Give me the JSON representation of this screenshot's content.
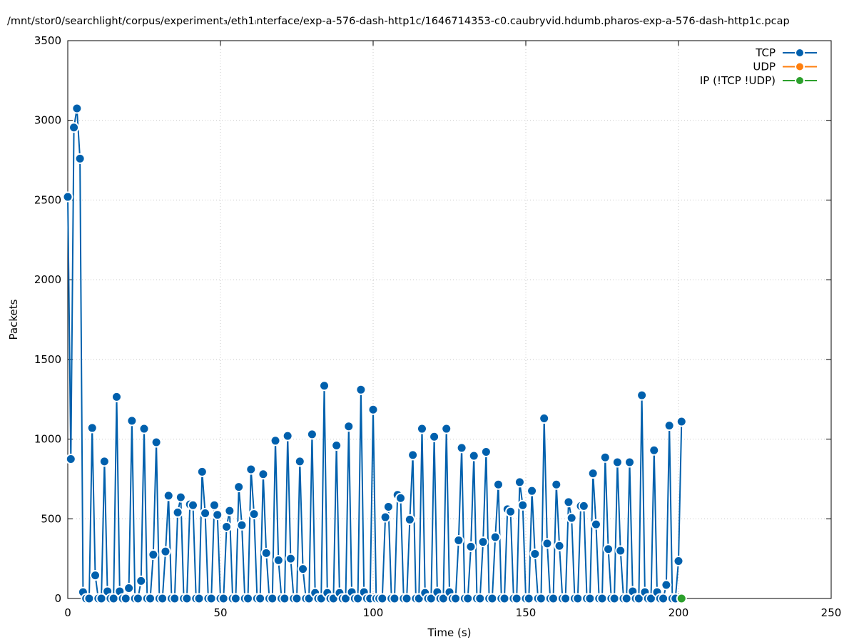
{
  "chart_data": {
    "type": "line",
    "title": "/mnt/stor0/searchlight/corpus/experiment₃/eth1ᵢnterface/exp-a-576-dash-http1c/1646714353-c0.caubryvid.hdumb.pharos-exp-a-576-dash-http1c.pcap",
    "xlabel": "Time (s)",
    "ylabel": "Packets",
    "xlim": [
      0,
      250
    ],
    "ylim": [
      0,
      3500
    ],
    "xticks": [
      0,
      50,
      100,
      150,
      200,
      250
    ],
    "yticks": [
      0,
      500,
      1000,
      1500,
      2000,
      2500,
      3000,
      3500
    ],
    "grid": true,
    "legend_position": "top-right",
    "series": [
      {
        "name": "TCP",
        "color": "#0060ad",
        "points": [
          [
            0,
            2520
          ],
          [
            1,
            875
          ],
          [
            2,
            2955
          ],
          [
            3,
            3075
          ],
          [
            4,
            2760
          ],
          [
            5,
            40
          ],
          [
            6,
            0
          ],
          [
            7,
            0
          ],
          [
            8,
            1070
          ],
          [
            9,
            145
          ],
          [
            10,
            0
          ],
          [
            11,
            0
          ],
          [
            12,
            860
          ],
          [
            13,
            45
          ],
          [
            14,
            0
          ],
          [
            15,
            0
          ],
          [
            16,
            1265
          ],
          [
            17,
            45
          ],
          [
            18,
            0
          ],
          [
            19,
            0
          ],
          [
            20,
            65
          ],
          [
            21,
            1115
          ],
          [
            22,
            0
          ],
          [
            23,
            0
          ],
          [
            24,
            110
          ],
          [
            25,
            1065
          ],
          [
            26,
            0
          ],
          [
            27,
            0
          ],
          [
            28,
            275
          ],
          [
            29,
            980
          ],
          [
            30,
            0
          ],
          [
            31,
            0
          ],
          [
            32,
            295
          ],
          [
            33,
            645
          ],
          [
            34,
            0
          ],
          [
            35,
            0
          ],
          [
            36,
            540
          ],
          [
            37,
            635
          ],
          [
            38,
            0
          ],
          [
            39,
            0
          ],
          [
            40,
            590
          ],
          [
            41,
            585
          ],
          [
            42,
            0
          ],
          [
            43,
            0
          ],
          [
            44,
            795
          ],
          [
            45,
            535
          ],
          [
            46,
            0
          ],
          [
            47,
            0
          ],
          [
            48,
            585
          ],
          [
            49,
            525
          ],
          [
            50,
            0
          ],
          [
            51,
            0
          ],
          [
            52,
            450
          ],
          [
            53,
            550
          ],
          [
            54,
            0
          ],
          [
            55,
            0
          ],
          [
            56,
            700
          ],
          [
            57,
            460
          ],
          [
            58,
            0
          ],
          [
            59,
            0
          ],
          [
            60,
            810
          ],
          [
            61,
            530
          ],
          [
            62,
            0
          ],
          [
            63,
            0
          ],
          [
            64,
            780
          ],
          [
            65,
            285
          ],
          [
            66,
            0
          ],
          [
            67,
            0
          ],
          [
            68,
            990
          ],
          [
            69,
            240
          ],
          [
            70,
            0
          ],
          [
            71,
            0
          ],
          [
            72,
            1020
          ],
          [
            73,
            250
          ],
          [
            74,
            0
          ],
          [
            75,
            0
          ],
          [
            76,
            860
          ],
          [
            77,
            185
          ],
          [
            78,
            0
          ],
          [
            79,
            0
          ],
          [
            80,
            1030
          ],
          [
            81,
            35
          ],
          [
            82,
            0
          ],
          [
            83,
            0
          ],
          [
            84,
            1335
          ],
          [
            85,
            35
          ],
          [
            86,
            0
          ],
          [
            87,
            0
          ],
          [
            88,
            960
          ],
          [
            89,
            35
          ],
          [
            90,
            0
          ],
          [
            91,
            0
          ],
          [
            92,
            1080
          ],
          [
            93,
            40
          ],
          [
            94,
            0
          ],
          [
            95,
            0
          ],
          [
            96,
            1310
          ],
          [
            97,
            40
          ],
          [
            98,
            0
          ],
          [
            99,
            0
          ],
          [
            100,
            1185
          ],
          [
            101,
            0
          ],
          [
            102,
            0
          ],
          [
            103,
            0
          ],
          [
            104,
            510
          ],
          [
            105,
            575
          ],
          [
            106,
            0
          ],
          [
            107,
            0
          ],
          [
            108,
            650
          ],
          [
            109,
            630
          ],
          [
            110,
            0
          ],
          [
            111,
            0
          ],
          [
            112,
            495
          ],
          [
            113,
            900
          ],
          [
            114,
            0
          ],
          [
            115,
            0
          ],
          [
            116,
            1065
          ],
          [
            117,
            35
          ],
          [
            118,
            0
          ],
          [
            119,
            0
          ],
          [
            120,
            1015
          ],
          [
            121,
            40
          ],
          [
            122,
            0
          ],
          [
            123,
            0
          ],
          [
            124,
            1065
          ],
          [
            125,
            40
          ],
          [
            126,
            0
          ],
          [
            127,
            0
          ],
          [
            128,
            365
          ],
          [
            129,
            945
          ],
          [
            130,
            0
          ],
          [
            131,
            0
          ],
          [
            132,
            325
          ],
          [
            133,
            895
          ],
          [
            134,
            0
          ],
          [
            135,
            0
          ],
          [
            136,
            355
          ],
          [
            137,
            920
          ],
          [
            138,
            0
          ],
          [
            139,
            0
          ],
          [
            140,
            385
          ],
          [
            141,
            715
          ],
          [
            142,
            0
          ],
          [
            143,
            0
          ],
          [
            144,
            560
          ],
          [
            145,
            545
          ],
          [
            146,
            0
          ],
          [
            147,
            0
          ],
          [
            148,
            730
          ],
          [
            149,
            585
          ],
          [
            150,
            0
          ],
          [
            151,
            0
          ],
          [
            152,
            675
          ],
          [
            153,
            280
          ],
          [
            154,
            0
          ],
          [
            155,
            0
          ],
          [
            156,
            1130
          ],
          [
            157,
            345
          ],
          [
            158,
            0
          ],
          [
            159,
            0
          ],
          [
            160,
            715
          ],
          [
            161,
            330
          ],
          [
            162,
            0
          ],
          [
            163,
            0
          ],
          [
            164,
            605
          ],
          [
            165,
            505
          ],
          [
            166,
            0
          ],
          [
            167,
            0
          ],
          [
            168,
            580
          ],
          [
            169,
            580
          ],
          [
            170,
            0
          ],
          [
            171,
            0
          ],
          [
            172,
            785
          ],
          [
            173,
            465
          ],
          [
            174,
            0
          ],
          [
            175,
            0
          ],
          [
            176,
            885
          ],
          [
            177,
            310
          ],
          [
            178,
            0
          ],
          [
            179,
            0
          ],
          [
            180,
            855
          ],
          [
            181,
            300
          ],
          [
            182,
            0
          ],
          [
            183,
            0
          ],
          [
            184,
            855
          ],
          [
            185,
            45
          ],
          [
            186,
            0
          ],
          [
            187,
            0
          ],
          [
            188,
            1275
          ],
          [
            189,
            40
          ],
          [
            190,
            0
          ],
          [
            191,
            0
          ],
          [
            192,
            930
          ],
          [
            193,
            40
          ],
          [
            194,
            0
          ],
          [
            195,
            0
          ],
          [
            196,
            85
          ],
          [
            197,
            1085
          ],
          [
            198,
            0
          ],
          [
            199,
            0
          ],
          [
            200,
            235
          ],
          [
            201,
            1110
          ]
        ]
      },
      {
        "name": "UDP",
        "color": "#ff7f0e",
        "points": []
      },
      {
        "name": "IP (!TCP  !UDP)",
        "color": "#2ca02c",
        "points": [
          [
            201,
            0
          ]
        ]
      }
    ]
  }
}
